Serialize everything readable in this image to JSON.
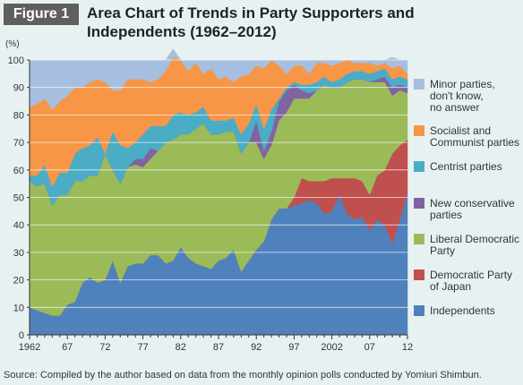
{
  "figure": {
    "badge": "Figure 1",
    "title": "Area Chart of Trends in Party Supporters and Independents (1962–2012)"
  },
  "source": "Source: Compiled by the author based on data from the monthly opinion polls conducted by Yomiuri Shimbun.",
  "chart_data": {
    "type": "area",
    "stacked": true,
    "title": "",
    "xlabel": "",
    "ylabel": "(%)",
    "xlim": [
      1962,
      2012
    ],
    "ylim": [
      0,
      100
    ],
    "yticks": [
      0,
      10,
      20,
      30,
      40,
      50,
      60,
      70,
      80,
      90,
      100
    ],
    "xticks": [
      {
        "value": 1962,
        "label": "1962"
      },
      {
        "value": 1967,
        "label": "67"
      },
      {
        "value": 1972,
        "label": "72"
      },
      {
        "value": 1977,
        "label": "77"
      },
      {
        "value": 1982,
        "label": "82"
      },
      {
        "value": 1987,
        "label": "87"
      },
      {
        "value": 1992,
        "label": "92"
      },
      {
        "value": 1997,
        "label": "97"
      },
      {
        "value": 2002,
        "label": "2002"
      },
      {
        "value": 2007,
        "label": "07"
      },
      {
        "value": 2012,
        "label": "12"
      }
    ],
    "grid": true,
    "legend_position": "right",
    "x": [
      1962,
      1963,
      1964,
      1965,
      1966,
      1967,
      1968,
      1969,
      1970,
      1971,
      1972,
      1973,
      1974,
      1975,
      1976,
      1977,
      1978,
      1979,
      1980,
      1981,
      1982,
      1983,
      1984,
      1985,
      1986,
      1987,
      1988,
      1989,
      1990,
      1991,
      1992,
      1993,
      1994,
      1995,
      1996,
      1997,
      1998,
      1999,
      2000,
      2001,
      2002,
      2003,
      2004,
      2005,
      2006,
      2007,
      2008,
      2009,
      2010,
      2011,
      2012
    ],
    "series": [
      {
        "name": "Independents",
        "color": "#4f81bd",
        "values": [
          10,
          9,
          8,
          7,
          7,
          11,
          12,
          19,
          21,
          19,
          20,
          27,
          19,
          25,
          26,
          26,
          29,
          29,
          26,
          27,
          32,
          28,
          26,
          25,
          24,
          27,
          28,
          31,
          23,
          27,
          31,
          34,
          42,
          46,
          46,
          47,
          48,
          49,
          48,
          44,
          45,
          51,
          44,
          42,
          43,
          38,
          42,
          40,
          33,
          42,
          52
        ]
      },
      {
        "name": "Democratic Party of Japan",
        "color": "#c0504d",
        "values": [
          0,
          0,
          0,
          0,
          0,
          0,
          0,
          0,
          0,
          0,
          0,
          0,
          0,
          0,
          0,
          0,
          0,
          0,
          0,
          0,
          0,
          0,
          0,
          0,
          0,
          0,
          0,
          0,
          0,
          0,
          0,
          0,
          0,
          0,
          0,
          3,
          9,
          7,
          8,
          12,
          12,
          6,
          13,
          15,
          13,
          13,
          16,
          20,
          33,
          27,
          19
        ]
      },
      {
        "name": "Liberal Democratic Party",
        "color": "#9bbb59",
        "values": [
          46,
          45,
          47,
          40,
          44,
          40,
          44,
          37,
          37,
          39,
          46,
          33,
          36,
          36,
          36,
          35,
          35,
          38,
          44,
          44,
          41,
          45,
          49,
          52,
          49,
          46,
          46,
          43,
          43,
          43,
          39,
          30,
          27,
          32,
          35,
          36,
          29,
          30,
          33,
          35,
          33,
          33,
          35,
          36,
          37,
          41,
          34,
          32,
          21,
          20,
          17
        ]
      },
      {
        "name": "New conservative parties",
        "color": "#8064a2",
        "values": [
          0,
          0,
          0,
          0,
          0,
          0,
          0,
          0,
          0,
          0,
          0,
          0,
          0,
          0,
          2,
          3,
          4,
          0,
          0,
          0,
          0,
          0,
          0,
          0,
          0,
          0,
          0,
          0,
          0,
          0,
          8,
          3,
          5,
          7,
          8,
          5,
          3,
          2,
          0,
          0,
          0,
          0,
          0,
          0,
          0,
          0,
          1,
          2,
          3,
          2,
          2
        ]
      },
      {
        "name": "Centrist parties",
        "color": "#4bacc6",
        "values": [
          2,
          4,
          7,
          7,
          8,
          8,
          10,
          12,
          11,
          14,
          0,
          14,
          14,
          7,
          6,
          9,
          8,
          9,
          6,
          9,
          8,
          7,
          6,
          6,
          5,
          5,
          4,
          5,
          7,
          7,
          6,
          8,
          8,
          1,
          1,
          1,
          2,
          3,
          3,
          3,
          2,
          3,
          3,
          3,
          3,
          3,
          3,
          3,
          3,
          3,
          3
        ]
      },
      {
        "name": "Socialist and Communist parties",
        "color": "#f79646",
        "values": [
          25,
          26,
          24,
          28,
          26,
          28,
          24,
          22,
          23,
          21,
          26,
          15,
          20,
          25,
          23,
          20,
          16,
          17,
          20,
          21,
          19,
          16,
          18,
          12,
          19,
          15,
          16,
          13,
          21,
          18,
          14,
          22,
          18,
          12,
          5,
          6,
          7,
          4,
          7,
          5,
          6,
          6,
          5,
          3,
          3,
          4,
          2,
          2,
          4,
          4,
          2
        ]
      },
      {
        "name": "Minor parties, don't know, no answer",
        "color": "#a6bfe0",
        "values": [
          17,
          16,
          14,
          18,
          15,
          13,
          10,
          10,
          8,
          7,
          8,
          11,
          11,
          7,
          7,
          7,
          8,
          7,
          4,
          3,
          0,
          4,
          1,
          5,
          3,
          7,
          6,
          8,
          6,
          5,
          2,
          3,
          0,
          2,
          5,
          2,
          2,
          5,
          1,
          1,
          2,
          1,
          0,
          1,
          1,
          1,
          2,
          1,
          4,
          2,
          5
        ]
      }
    ]
  }
}
